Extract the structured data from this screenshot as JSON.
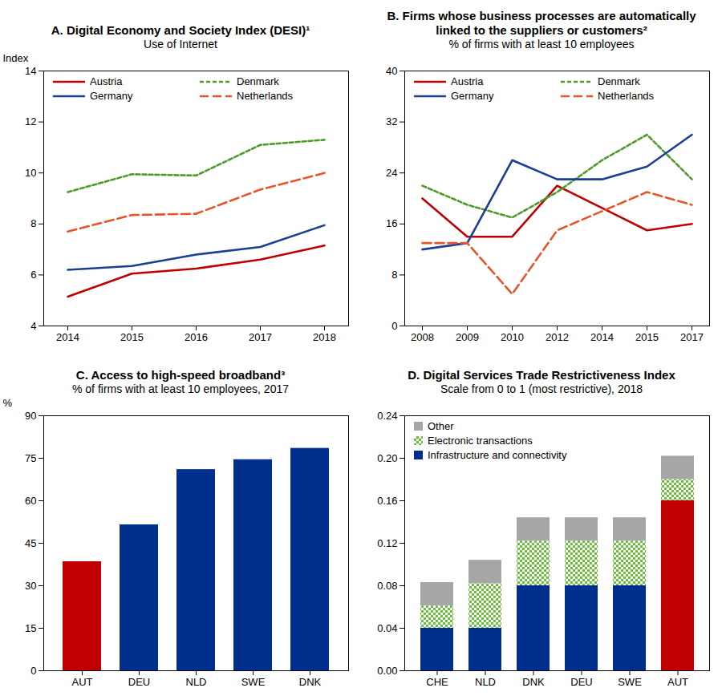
{
  "chart_data": [
    {
      "type": "line",
      "title": "A. Digital Economy and Society Index (DESI)¹",
      "subtitle": "Use of Internet",
      "ylabel": "Index",
      "categories": [
        "2014",
        "2015",
        "2016",
        "2017",
        "2018"
      ],
      "series": [
        {
          "name": "Austria",
          "color": "#c00000",
          "line_style": "solid",
          "values": [
            5.15,
            6.05,
            6.25,
            6.6,
            7.15
          ]
        },
        {
          "name": "Denmark",
          "color": "#4e9a2a",
          "line_style": "dashed",
          "values": [
            9.25,
            9.95,
            9.9,
            11.1,
            11.3
          ]
        },
        {
          "name": "Germany",
          "color": "#1b3f94",
          "line_style": "solid",
          "values": [
            6.2,
            6.35,
            6.8,
            7.1,
            7.95
          ]
        },
        {
          "name": "Netherlands",
          "color": "#e8542a",
          "line_style": "longdash",
          "values": [
            7.7,
            8.35,
            8.4,
            9.35,
            10.0
          ]
        }
      ],
      "ylim": [
        4,
        14
      ],
      "yticks": [
        4,
        6,
        8,
        10,
        12,
        14
      ],
      "grid": false,
      "legend": "top"
    },
    {
      "type": "line",
      "title": "B. Firms whose business processes are automatically linked to the suppliers or customers²",
      "subtitle": "% of firms with at least 10 employees",
      "categories": [
        "2008",
        "2009",
        "2010",
        "2012",
        "2014",
        "2015",
        "2017"
      ],
      "series": [
        {
          "name": "Austria",
          "color": "#c00000",
          "line_style": "solid",
          "values": [
            20,
            14,
            14,
            22,
            18.5,
            15,
            16
          ]
        },
        {
          "name": "Denmark",
          "color": "#4e9a2a",
          "line_style": "dashed",
          "values": [
            22,
            19,
            17,
            21,
            26,
            30,
            23
          ]
        },
        {
          "name": "Germany",
          "color": "#1b3f94",
          "line_style": "solid",
          "values": [
            12,
            13,
            26,
            23,
            23,
            25,
            30
          ]
        },
        {
          "name": "Netherlands",
          "color": "#e8542a",
          "line_style": "longdash",
          "values": [
            13,
            13,
            5,
            15,
            18,
            21,
            19
          ]
        }
      ],
      "ylim": [
        0,
        40
      ],
      "yticks": [
        0,
        8,
        16,
        24,
        32,
        40
      ],
      "grid": false,
      "legend": "top"
    },
    {
      "type": "bar",
      "title": "C. Access to high-speed broadband³",
      "subtitle": "% of firms with at least 10 employees, 2017",
      "ylabel": "%",
      "categories": [
        "AUT",
        "DEU",
        "NLD",
        "SWE",
        "DNK"
      ],
      "values": [
        38.5,
        51.5,
        71,
        74.5,
        78.5
      ],
      "colors": [
        "#c00000",
        "#002f8e",
        "#002f8e",
        "#002f8e",
        "#002f8e"
      ],
      "ylim": [
        0,
        90
      ],
      "yticks": [
        0,
        15,
        30,
        45,
        60,
        75,
        90
      ],
      "grid": false
    },
    {
      "type": "bar",
      "title": "D. Digital Services Trade Restrictiveness Index",
      "subtitle": "Scale from 0 to 1 (most restrictive), 2018",
      "categories": [
        "CHE",
        "NLD",
        "DNK",
        "DEU",
        "SWE",
        "AUT"
      ],
      "stacked": true,
      "series": [
        {
          "name": "Other",
          "color": "#a6a6a6",
          "values": [
            0.022,
            0.022,
            0.022,
            0.022,
            0.022,
            0.022
          ]
        },
        {
          "name": "Electronic transactions",
          "color": "#6cbf3c",
          "values": [
            0.021,
            0.042,
            0.042,
            0.042,
            0.042,
            0.02
          ]
        },
        {
          "name": "Infrastructure and connectivity",
          "color": "#002f8e",
          "colors": [
            "#002f8e",
            "#002f8e",
            "#002f8e",
            "#002f8e",
            "#002f8e",
            "#c00000"
          ],
          "values": [
            0.04,
            0.04,
            0.08,
            0.08,
            0.08,
            0.16
          ]
        }
      ],
      "ylim": [
        0,
        0.24
      ],
      "yticks": [
        {
          "value": 0,
          "label": "0.00"
        },
        0.04,
        0.08,
        0.12,
        0.16,
        {
          "value": 0.2,
          "label": "0.20"
        },
        0.24
      ],
      "grid": false,
      "legend": "top-left"
    }
  ]
}
